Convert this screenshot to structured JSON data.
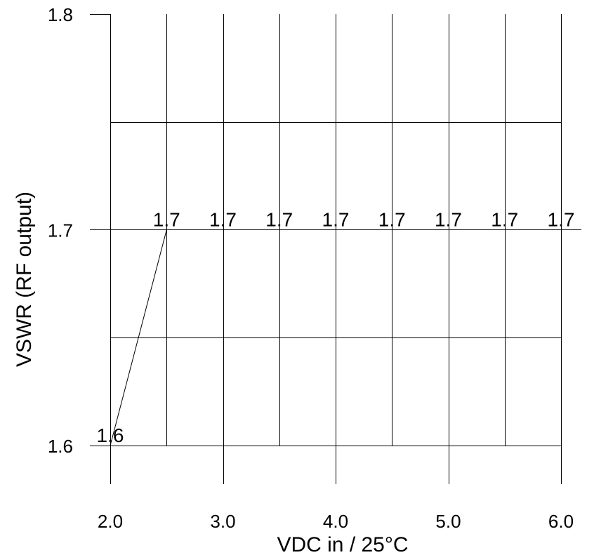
{
  "chart_data": {
    "type": "line",
    "title": "",
    "xlabel": "VDC in / 25°C",
    "ylabel": "VSWR (RF output)",
    "xlim": [
      2.0,
      6.0
    ],
    "ylim": [
      1.6,
      1.8
    ],
    "x_ticks": [
      "2.0",
      "3.0",
      "4.0",
      "5.0",
      "6.0"
    ],
    "y_ticks": [
      "1.6",
      "1.7",
      "1.8"
    ],
    "grid": true,
    "legend": "none",
    "series": [
      {
        "x": [
          2.0,
          2.5,
          3.0,
          3.5,
          4.0,
          4.5,
          5.0,
          5.5,
          6.0
        ],
        "values": [
          1.6,
          1.7,
          1.7,
          1.7,
          1.7,
          1.7,
          1.7,
          1.7,
          1.7
        ],
        "labels": [
          "1.6",
          "1.7",
          "1.7",
          "1.7",
          "1.7",
          "1.7",
          "1.7",
          "1.7",
          "1.7"
        ],
        "color": "#000000"
      }
    ]
  }
}
